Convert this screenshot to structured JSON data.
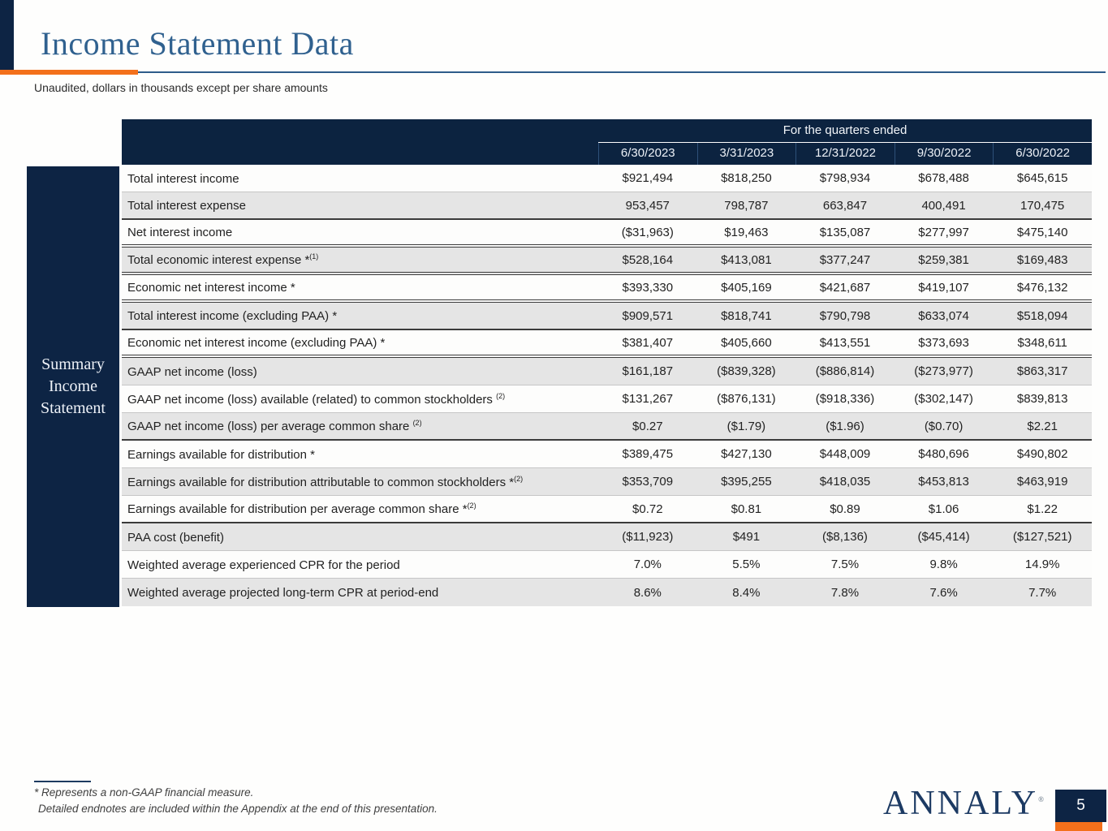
{
  "slide": {
    "title": "Income Statement Data",
    "subtitle": "Unaudited, dollars in thousands except per share amounts",
    "page_number": "5"
  },
  "colors": {
    "navy": "#0d2444",
    "orange": "#f3701b",
    "title_blue": "#30618f",
    "rule_blue": "#2e5c8a",
    "row_gray": "#e5e5e5"
  },
  "table": {
    "header": {
      "span_label": "For the quarters ended",
      "columns": [
        "6/30/2023",
        "3/31/2023",
        "12/31/2022",
        "9/30/2022",
        "6/30/2022"
      ]
    },
    "sidebar_lines": [
      "Summary",
      "Income",
      "Statement"
    ],
    "rows": [
      {
        "label": "Total interest income",
        "sup": "",
        "values": [
          "$921,494",
          "$818,250",
          "$798,934",
          "$678,488",
          "$645,615"
        ],
        "divider": "light"
      },
      {
        "label": "Total interest expense",
        "sup": "",
        "values": [
          "953,457",
          "798,787",
          "663,847",
          "400,491",
          "170,475"
        ],
        "divider": "dark"
      },
      {
        "label": "Net interest income",
        "sup": "",
        "values": [
          "($31,963)",
          "$19,463",
          "$135,087",
          "$277,997",
          "$475,140"
        ],
        "divider": "double"
      },
      {
        "label": "Total economic interest expense *",
        "sup": "(1)",
        "values": [
          "$528,164",
          "$413,081",
          "$377,247",
          "$259,381",
          "$169,483"
        ],
        "divider": "double"
      },
      {
        "label": "Economic net interest income *",
        "sup": "",
        "values": [
          "$393,330",
          "$405,169",
          "$421,687",
          "$419,107",
          "$476,132"
        ],
        "divider": "double"
      },
      {
        "label": "Total interest income (excluding PAA) *",
        "sup": "",
        "values": [
          "$909,571",
          "$818,741",
          "$790,798",
          "$633,074",
          "$518,094"
        ],
        "divider": "dark"
      },
      {
        "label": "Economic net interest income (excluding PAA) *",
        "sup": "",
        "values": [
          "$381,407",
          "$405,660",
          "$413,551",
          "$373,693",
          "$348,611"
        ],
        "divider": "double"
      },
      {
        "label": "GAAP net income (loss)",
        "sup": "",
        "values": [
          "$161,187",
          "($839,328)",
          "($886,814)",
          "($273,977)",
          "$863,317"
        ],
        "divider": "light"
      },
      {
        "label": "GAAP net income (loss) available (related) to common stockholders ",
        "sup": "(2)",
        "values": [
          "$131,267",
          "($876,131)",
          "($918,336)",
          "($302,147)",
          "$839,813"
        ],
        "divider": "light"
      },
      {
        "label": "GAAP net income (loss) per average common share ",
        "sup": "(2)",
        "values": [
          "$0.27",
          "($1.79)",
          "($1.96)",
          "($0.70)",
          "$2.21"
        ],
        "divider": "dark"
      },
      {
        "label": "Earnings available for distribution *",
        "sup": "",
        "values": [
          "$389,475",
          "$427,130",
          "$448,009",
          "$480,696",
          "$490,802"
        ],
        "divider": "light"
      },
      {
        "label": "Earnings available for distribution attributable to common stockholders *",
        "sup": "(2)",
        "values": [
          "$353,709",
          "$395,255",
          "$418,035",
          "$453,813",
          "$463,919"
        ],
        "divider": "light"
      },
      {
        "label": "Earnings available for distribution per average common share *",
        "sup": "(2)",
        "values": [
          "$0.72",
          "$0.81",
          "$0.89",
          "$1.06",
          "$1.22"
        ],
        "divider": "dark"
      },
      {
        "label": "PAA cost (benefit)",
        "sup": "",
        "values": [
          "($11,923)",
          "$491",
          "($8,136)",
          "($45,414)",
          "($127,521)"
        ],
        "divider": "light"
      },
      {
        "label": "Weighted average experienced CPR for the period",
        "sup": "",
        "values": [
          "7.0%",
          "5.5%",
          "7.5%",
          "9.8%",
          "14.9%"
        ],
        "divider": "light"
      },
      {
        "label": "Weighted average projected long-term CPR at period-end",
        "sup": "",
        "values": [
          "8.6%",
          "8.4%",
          "7.8%",
          "7.6%",
          "7.7%"
        ],
        "divider": "none"
      }
    ]
  },
  "footer": {
    "note1": "* Represents a non-GAAP financial measure.",
    "note2": "Detailed endnotes are included within the Appendix at the end of this presentation.",
    "logo_text": "ANNALY",
    "logo_mark": "®"
  }
}
